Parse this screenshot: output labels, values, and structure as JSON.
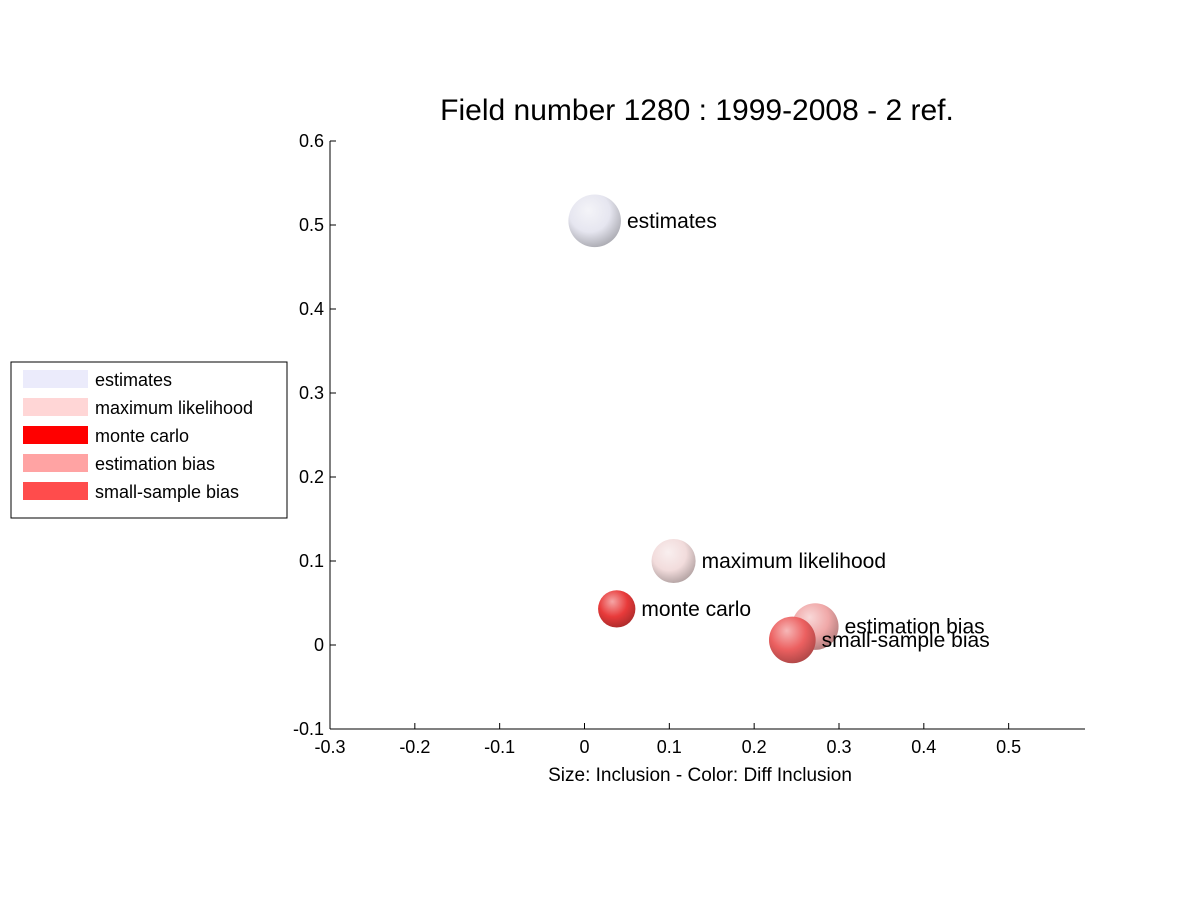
{
  "chart_data": {
    "type": "scatter",
    "title": "Field number 1280 : 1999-2008  - 2 ref.",
    "xlabel": "Size: Inclusion - Color: Diff Inclusion",
    "ylabel": "",
    "xlim": [
      -0.3,
      0.59
    ],
    "ylim": [
      -0.1,
      0.6
    ],
    "xticks": [
      -0.3,
      -0.2,
      -0.1,
      0,
      0.1,
      0.2,
      0.3,
      0.4,
      0.5
    ],
    "xtick_labels": [
      "-0.3",
      "-0.2",
      "-0.1",
      "0",
      "0.1",
      "0.2",
      "0.3",
      "0.4",
      "0.5"
    ],
    "yticks": [
      -0.1,
      0,
      0.1,
      0.2,
      0.3,
      0.4,
      0.5,
      0.6
    ],
    "ytick_labels": [
      "-0.1",
      "0",
      "0.1",
      "0.2",
      "0.3",
      "0.4",
      "0.5",
      "0.6"
    ],
    "grid": false,
    "legend_position": "left-middle",
    "points": [
      {
        "label": "estimates",
        "x": 0.012,
        "y": 0.505,
        "size": 0.062,
        "color": "#e6e6f0"
      },
      {
        "label": "maximum likelihood",
        "x": 0.105,
        "y": 0.1,
        "size": 0.052,
        "color": "#f2dcdc"
      },
      {
        "label": "monte carlo",
        "x": 0.038,
        "y": 0.043,
        "size": 0.044,
        "color": "#e83a3a"
      },
      {
        "label": "estimation bias",
        "x": 0.272,
        "y": 0.022,
        "size": 0.055,
        "color": "#f0a8a8"
      },
      {
        "label": "small-sample bias",
        "x": 0.245,
        "y": 0.006,
        "size": 0.055,
        "color": "#ec6060"
      }
    ],
    "legend": [
      {
        "label": "estimates",
        "color": "#ebebfb"
      },
      {
        "label": "maximum likelihood",
        "color": "#ffd6d6"
      },
      {
        "label": "monte carlo",
        "color": "#ff0000"
      },
      {
        "label": "estimation bias",
        "color": "#ffa3a3"
      },
      {
        "label": "small-sample bias",
        "color": "#ff4c4c"
      }
    ]
  }
}
